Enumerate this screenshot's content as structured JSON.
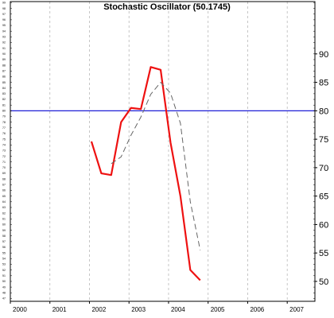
{
  "chart_data": {
    "type": "line",
    "title": "Stochastic Oscillator (50.1745)",
    "xlabel": "",
    "ylabel": "",
    "xlim": [
      2000.0,
      2007.7
    ],
    "ylim": [
      46.5,
      99.2
    ],
    "grid": {
      "vertical_dashed_at_years": true
    },
    "y_major_ticks": [
      50,
      55,
      60,
      65,
      70,
      75,
      80,
      85,
      90
    ],
    "y_minor_ticks": [
      47,
      48,
      49,
      50,
      51,
      52,
      53,
      54,
      55,
      56,
      57,
      58,
      59,
      60,
      61,
      62,
      63,
      64,
      65,
      66,
      67,
      68,
      69,
      70,
      71,
      72,
      73,
      74,
      75,
      76,
      77,
      78,
      79,
      80,
      81,
      82,
      83,
      84,
      85,
      86,
      87,
      88,
      89,
      90,
      91,
      92,
      93,
      94,
      95,
      96,
      97,
      98,
      99
    ],
    "x_ticks": [
      "2000",
      "2001",
      "2002",
      "2003",
      "2004",
      "2005",
      "2006",
      "2007"
    ],
    "reference_line": {
      "y": 80,
      "color": "#1f1fd6"
    },
    "series": [
      {
        "style": "solid",
        "color": "#ee1111",
        "x": [
          2002.05,
          2002.3,
          2002.55,
          2002.8,
          2003.05,
          2003.3,
          2003.55,
          2003.8,
          2004.05,
          2004.3,
          2004.55,
          2004.8
        ],
        "y": [
          74.6,
          69.0,
          68.7,
          78.0,
          80.5,
          80.3,
          87.7,
          87.2,
          74.4,
          65.0,
          52.0,
          50.2
        ]
      },
      {
        "style": "dashed",
        "color": "#666666",
        "x": [
          2002.55,
          2002.8,
          2003.05,
          2003.3,
          2003.55,
          2003.8,
          2004.05,
          2004.3,
          2004.55,
          2004.8
        ],
        "y": [
          70.7,
          71.9,
          75.7,
          78.9,
          82.9,
          85.0,
          83.1,
          77.8,
          64.0,
          55.5
        ]
      }
    ]
  }
}
